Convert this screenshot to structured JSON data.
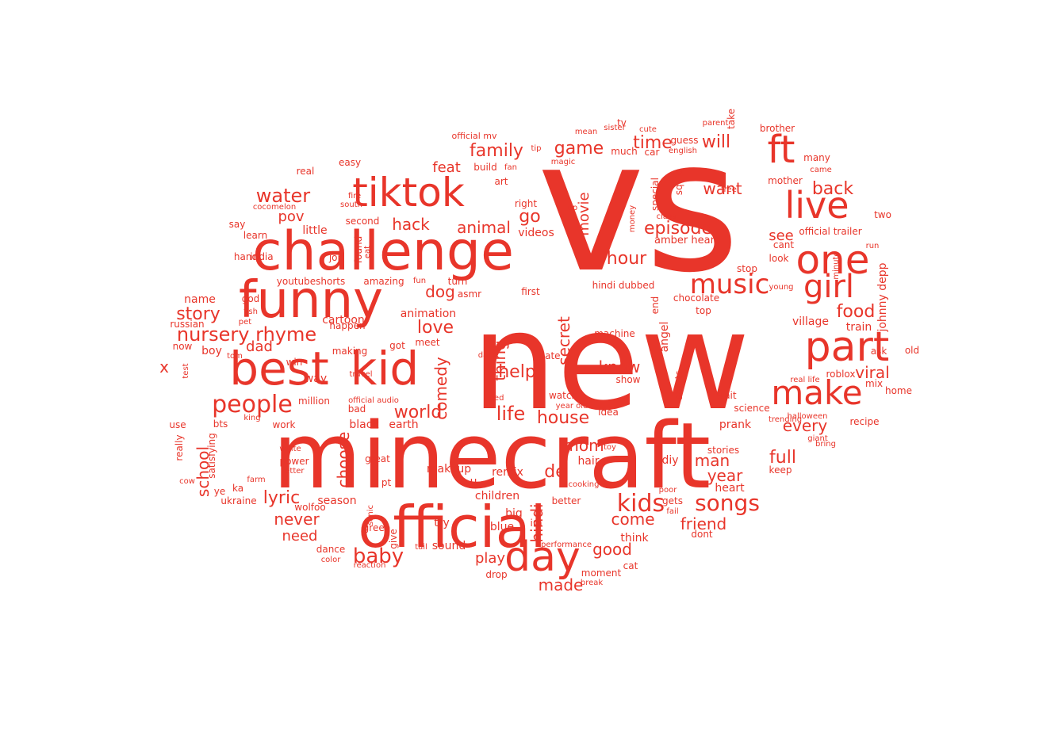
{
  "word_cloud": {
    "color": "#e8352a",
    "shape": "cloud",
    "words": [
      {
        "text": "vs",
        "weight": 100
      },
      {
        "text": "new",
        "weight": 96
      },
      {
        "text": "minecraft",
        "weight": 74
      },
      {
        "text": "official",
        "weight": 55
      },
      {
        "text": "challenge",
        "weight": 50
      },
      {
        "text": "funny",
        "weight": 48
      },
      {
        "text": "best",
        "weight": 45
      },
      {
        "text": "kid",
        "weight": 45
      },
      {
        "text": "tiktok",
        "weight": 42
      },
      {
        "text": "part",
        "weight": 40
      },
      {
        "text": "one",
        "weight": 38
      },
      {
        "text": "day",
        "weight": 38
      },
      {
        "text": "ft",
        "weight": 36
      },
      {
        "text": "live",
        "weight": 34
      },
      {
        "text": "make",
        "weight": 32
      },
      {
        "text": "girl",
        "weight": 30
      },
      {
        "text": "music",
        "weight": 26
      },
      {
        "text": "people",
        "weight": 24
      },
      {
        "text": "kids",
        "weight": 22
      },
      {
        "text": "songs",
        "weight": 22
      },
      {
        "text": "baby",
        "weight": 20
      },
      {
        "text": "water",
        "weight": 18
      },
      {
        "text": "story",
        "weight": 18
      },
      {
        "text": "nursery rhyme",
        "weight": 18
      },
      {
        "text": "family",
        "weight": 17
      },
      {
        "text": "world",
        "weight": 17
      },
      {
        "text": "life",
        "weight": 17
      },
      {
        "text": "house",
        "weight": 17
      },
      {
        "text": "food",
        "weight": 17
      },
      {
        "text": "hour",
        "weight": 17
      },
      {
        "text": "episode",
        "weight": 17
      },
      {
        "text": "will",
        "weight": 17
      },
      {
        "text": "back",
        "weight": 17
      },
      {
        "text": "game",
        "weight": 16
      },
      {
        "text": "time",
        "weight": 16
      },
      {
        "text": "full",
        "weight": 16
      },
      {
        "text": "friend",
        "weight": 16
      },
      {
        "text": "year",
        "weight": 16
      },
      {
        "text": "come",
        "weight": 16
      },
      {
        "text": "hack",
        "weight": 15
      },
      {
        "text": "animal",
        "weight": 15
      },
      {
        "text": "go",
        "weight": 15
      },
      {
        "text": "dog",
        "weight": 15
      },
      {
        "text": "love",
        "weight": 15
      },
      {
        "text": "help",
        "weight": 15
      },
      {
        "text": "know",
        "weight": 15
      },
      {
        "text": "mom",
        "weight": 15
      },
      {
        "text": "man",
        "weight": 15
      },
      {
        "text": "good",
        "weight": 15
      },
      {
        "text": "made",
        "weight": 15
      },
      {
        "text": "lyric",
        "weight": 15
      },
      {
        "text": "never",
        "weight": 15
      },
      {
        "text": "need",
        "weight": 14
      },
      {
        "text": "secret",
        "weight": 14
      },
      {
        "text": "thing",
        "weight": 14
      },
      {
        "text": "comedy",
        "weight": 14
      },
      {
        "text": "choose",
        "weight": 14
      },
      {
        "text": "hindi",
        "weight": 14
      },
      {
        "text": "every",
        "weight": 14
      },
      {
        "text": "viral",
        "weight": 14
      },
      {
        "text": "want",
        "weight": 14
      },
      {
        "text": "see",
        "weight": 14
      },
      {
        "text": "school",
        "weight": 14
      },
      {
        "text": "dad",
        "weight": 14
      },
      {
        "text": "feat",
        "weight": 13
      },
      {
        "text": "pov",
        "weight": 13
      },
      {
        "text": "movie",
        "weight": 13
      },
      {
        "text": "de",
        "weight": 13
      },
      {
        "text": "play",
        "weight": 13
      },
      {
        "text": "x",
        "weight": 13
      },
      {
        "text": "village",
        "weight": 12
      },
      {
        "text": "train",
        "weight": 12
      },
      {
        "text": "little",
        "weight": 12
      },
      {
        "text": "video",
        "weight": 12
      },
      {
        "text": "videos",
        "weight": 11
      },
      {
        "text": "animation",
        "weight": 11
      },
      {
        "text": "cartoon",
        "weight": 11
      },
      {
        "text": "season",
        "weight": 11
      },
      {
        "text": "angel",
        "weight": 11
      },
      {
        "text": "amber heard",
        "weight": 11
      },
      {
        "text": "johnny depp",
        "weight": 11
      },
      {
        "text": "children",
        "weight": 10
      },
      {
        "text": "heart",
        "weight": 10
      },
      {
        "text": "prank",
        "weight": 10
      },
      {
        "text": "blue",
        "weight": 10
      },
      {
        "text": "dance",
        "weight": 10
      },
      {
        "text": "name",
        "weight": 10
      },
      {
        "text": "boy",
        "weight": 10
      },
      {
        "text": "youtubeshorts",
        "weight": 10
      },
      {
        "text": "amazing",
        "weight": 10
      },
      {
        "text": "black",
        "weight": 10
      },
      {
        "text": "earth",
        "weight": 10
      },
      {
        "text": "hair",
        "weight": 10
      },
      {
        "text": "makeup",
        "weight": 10
      },
      {
        "text": "sound",
        "weight": 10
      },
      {
        "text": "better",
        "weight": 10
      },
      {
        "text": "think",
        "weight": 10
      },
      {
        "text": "real",
        "weight": 9
      },
      {
        "text": "watch",
        "weight": 9
      },
      {
        "text": "shorts",
        "weight": 9
      },
      {
        "text": "recipe",
        "weight": 9
      },
      {
        "text": "home",
        "weight": 9
      },
      {
        "text": "roblox",
        "weight": 9
      },
      {
        "text": "mix",
        "weight": 9
      },
      {
        "text": "top",
        "weight": 9
      },
      {
        "text": "chocolate",
        "weight": 9
      },
      {
        "text": "guess",
        "weight": 9
      },
      {
        "text": "english",
        "weight": 9
      },
      {
        "text": "cute",
        "weight": 9
      },
      {
        "text": "sister",
        "weight": 9
      },
      {
        "text": "brother",
        "weight": 9
      },
      {
        "text": "parent",
        "weight": 9
      },
      {
        "text": "mother",
        "weight": 9
      },
      {
        "text": "official trailer",
        "weight": 9
      },
      {
        "text": "official mv",
        "weight": 9
      },
      {
        "text": "easy",
        "weight": 9
      },
      {
        "text": "art",
        "weight": 9
      },
      {
        "text": "right",
        "weight": 9
      },
      {
        "text": "build",
        "weight": 9
      },
      {
        "text": "first",
        "weight": 9
      },
      {
        "text": "turn",
        "weight": 9
      },
      {
        "text": "asmr",
        "weight": 9
      },
      {
        "text": "learn",
        "weight": 9
      },
      {
        "text": "say",
        "weight": 9
      },
      {
        "text": "hand",
        "weight": 9
      },
      {
        "text": "india",
        "weight": 9
      },
      {
        "text": "cocomelon",
        "weight": 9
      },
      {
        "text": "job",
        "weight": 9
      },
      {
        "text": "god",
        "weight": 9
      },
      {
        "text": "russian",
        "weight": 9
      },
      {
        "text": "now",
        "weight": 9
      },
      {
        "text": "bts",
        "weight": 9
      },
      {
        "text": "work",
        "weight": 9
      },
      {
        "text": "million",
        "weight": 9
      },
      {
        "text": "way",
        "weight": 9
      },
      {
        "text": "win",
        "weight": 9
      },
      {
        "text": "got",
        "weight": 9
      },
      {
        "text": "meet",
        "weight": 9
      },
      {
        "text": "making",
        "weight": 9
      },
      {
        "text": "happen",
        "weight": 9
      },
      {
        "text": "bad",
        "weight": 9
      },
      {
        "text": "fun",
        "weight": 9
      },
      {
        "text": "power",
        "weight": 9
      },
      {
        "text": "white",
        "weight": 9
      },
      {
        "text": "wolfoo",
        "weight": 9
      },
      {
        "text": "ukraine",
        "weight": 9
      },
      {
        "text": "satisfying",
        "weight": 9
      },
      {
        "text": "remix",
        "weight": 9
      },
      {
        "text": "big",
        "weight": 9
      },
      {
        "text": "great",
        "weight": 9
      },
      {
        "text": "try",
        "weight": 9
      },
      {
        "text": "im",
        "weight": 9
      },
      {
        "text": "dont",
        "weight": 9
      },
      {
        "text": "moment",
        "weight": 9
      },
      {
        "text": "cat",
        "weight": 9
      },
      {
        "text": "diy",
        "weight": 9
      },
      {
        "text": "gets",
        "weight": 9
      },
      {
        "text": "stories",
        "weight": 9
      },
      {
        "text": "science",
        "weight": 9
      },
      {
        "text": "wait",
        "weight": 9
      },
      {
        "text": "idea",
        "weight": 9
      },
      {
        "text": "show",
        "weight": 9
      },
      {
        "text": "machine",
        "weight": 9
      },
      {
        "text": "hindi dubbed",
        "weight": 9
      },
      {
        "text": "money",
        "weight": 9
      },
      {
        "text": "special",
        "weight": 9
      },
      {
        "text": "squid",
        "weight": 9
      },
      {
        "text": "car",
        "weight": 9
      },
      {
        "text": "much",
        "weight": 9
      },
      {
        "text": "look",
        "weight": 9
      },
      {
        "text": "many",
        "weight": 9
      },
      {
        "text": "came",
        "weight": 9
      },
      {
        "text": "keep",
        "weight": 9
      },
      {
        "text": "ask",
        "weight": 9
      },
      {
        "text": "old",
        "weight": 9
      },
      {
        "text": "two",
        "weight": 9
      },
      {
        "text": "run",
        "weight": 9
      },
      {
        "text": "fan",
        "weight": 9
      },
      {
        "text": "tip",
        "weight": 9
      },
      {
        "text": "cooking",
        "weight": 9
      },
      {
        "text": "end",
        "weight": 9
      },
      {
        "text": "class",
        "weight": 9
      },
      {
        "text": "green",
        "weight": 9
      },
      {
        "text": "second",
        "weight": 9
      },
      {
        "text": "found",
        "weight": 9
      },
      {
        "text": "travel",
        "weight": 9
      },
      {
        "text": "date",
        "weight": 9
      },
      {
        "text": "year old",
        "weight": 9
      },
      {
        "text": "real life",
        "weight": 9
      },
      {
        "text": "official audio",
        "weight": 9
      },
      {
        "text": "letter",
        "weight": 9
      },
      {
        "text": "really",
        "weight": 9
      },
      {
        "text": "use",
        "weight": 9
      },
      {
        "text": "king",
        "weight": 9
      },
      {
        "text": "sonic",
        "weight": 9
      },
      {
        "text": "give",
        "weight": 9
      },
      {
        "text": "tail",
        "weight": 9
      },
      {
        "text": "reaction",
        "weight": 9
      },
      {
        "text": "color",
        "weight": 9
      },
      {
        "text": "drop",
        "weight": 9
      },
      {
        "text": "break",
        "weight": 9
      },
      {
        "text": "tv",
        "weight": 9
      },
      {
        "text": "take",
        "weight": 9
      },
      {
        "text": "free",
        "weight": 9
      },
      {
        "text": "fire",
        "weight": 9
      },
      {
        "text": "south",
        "weight": 9
      },
      {
        "text": "halloween",
        "weight": 9
      },
      {
        "text": "giant",
        "weight": 9
      },
      {
        "text": "bring",
        "weight": 9
      },
      {
        "text": "poor",
        "weight": 9
      },
      {
        "text": "fail",
        "weight": 9
      },
      {
        "text": "performance",
        "weight": 9
      },
      {
        "text": "trending",
        "weight": 9
      },
      {
        "text": "young",
        "weight": 9
      },
      {
        "text": "stop",
        "weight": 9
      },
      {
        "text": "cant",
        "weight": 9
      },
      {
        "text": "minute",
        "weight": 9
      },
      {
        "text": "toy",
        "weight": 9
      },
      {
        "text": "magic",
        "weight": 9
      },
      {
        "text": "mean",
        "weight": 9
      },
      {
        "text": "eat",
        "weight": 9
      },
      {
        "text": "pet",
        "weight": 9
      },
      {
        "text": "fish",
        "weight": 9
      },
      {
        "text": "farm",
        "weight": 9
      },
      {
        "text": "cow",
        "weight": 9
      },
      {
        "text": "bed",
        "weight": 9
      },
      {
        "text": "dark",
        "weight": 9
      },
      {
        "text": "ka",
        "weight": 9
      },
      {
        "text": "ye",
        "weight": 9
      },
      {
        "text": "u",
        "weight": 9
      },
      {
        "text": "pt",
        "weight": 9
      },
      {
        "text": "tom",
        "weight": 9
      },
      {
        "text": "test",
        "weight": 9
      },
      {
        "text": "ep",
        "weight": 9
      }
    ]
  }
}
